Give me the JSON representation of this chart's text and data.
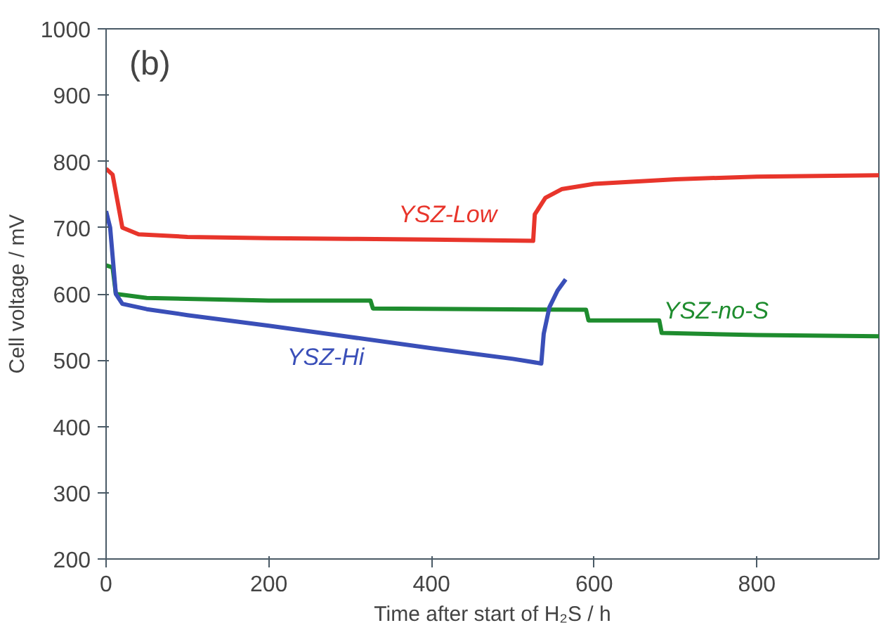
{
  "chart_data": {
    "type": "line",
    "xlabel": "Time after start of H₂S / h",
    "ylabel": "Cell voltage / mV",
    "xlim": [
      0,
      950
    ],
    "ylim": [
      200,
      1000
    ],
    "xticks": [
      0,
      200,
      400,
      600,
      800
    ],
    "yticks": [
      200,
      300,
      400,
      500,
      600,
      700,
      800,
      900,
      1000
    ],
    "grid": false,
    "marker": "none",
    "line_style": "solid",
    "annotations": [
      "(b)"
    ],
    "series": [
      {
        "name": "YSZ-Low",
        "color": "#e8352b",
        "x": [
          0,
          8,
          20,
          40,
          100,
          200,
          300,
          400,
          525,
          527,
          540,
          560,
          600,
          700,
          800,
          950
        ],
        "values": [
          789,
          780,
          700,
          690,
          686,
          684,
          683,
          682,
          680,
          720,
          745,
          758,
          766,
          773,
          777,
          779
        ]
      },
      {
        "name": "YSZ-no-S",
        "color": "#1e8c2e",
        "x": [
          0,
          8,
          12,
          50,
          200,
          325,
          328,
          590,
          593,
          680,
          683,
          800,
          950
        ],
        "values": [
          643,
          640,
          600,
          594,
          590,
          590,
          578,
          576,
          560,
          560,
          541,
          538,
          536
        ]
      },
      {
        "name": "YSZ-Hi",
        "color": "#3a4fb8",
        "x": [
          0,
          5,
          12,
          20,
          50,
          100,
          200,
          300,
          400,
          500,
          535,
          538,
          545,
          555,
          565
        ],
        "values": [
          725,
          700,
          600,
          585,
          577,
          568,
          552,
          535,
          518,
          502,
          495,
          540,
          580,
          605,
          622
        ]
      }
    ]
  }
}
